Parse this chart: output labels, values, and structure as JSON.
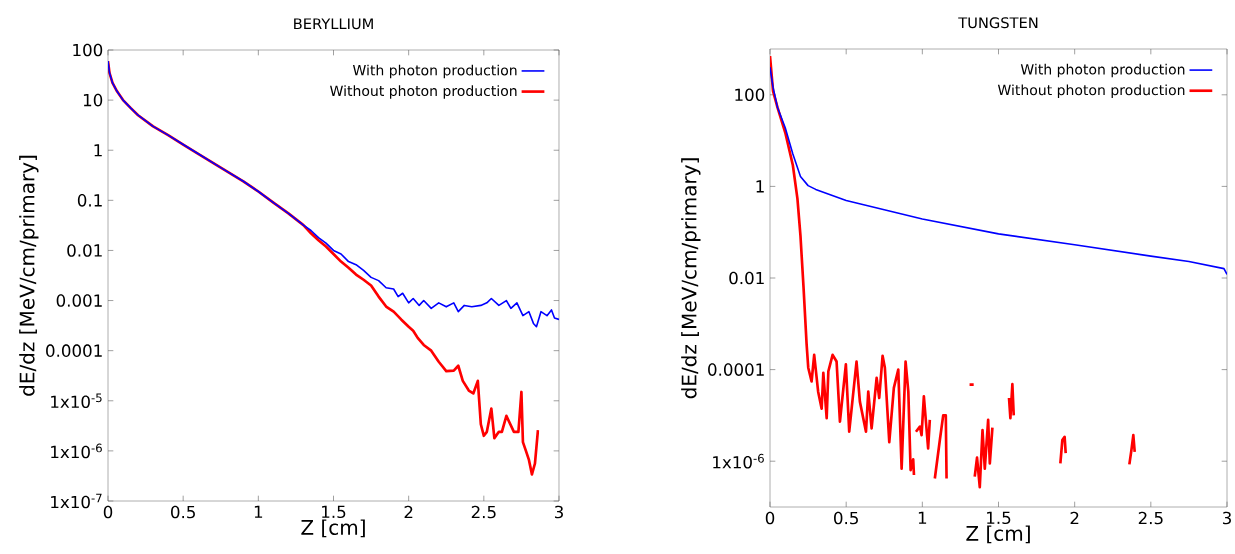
{
  "chart_data": [
    {
      "type": "line",
      "title": "BERYLLIUM",
      "xlabel": "Z [cm]",
      "ylabel": "dE/dz [MeV/cm/primary]",
      "log": "y",
      "legend": "top right",
      "xlim": [
        0,
        3
      ],
      "xticks": [
        0,
        0.5,
        1,
        1.5,
        2,
        2.5,
        3
      ],
      "ylim": [
        1e-07,
        100
      ],
      "yticks": [
        100,
        10,
        1,
        0.1,
        0.01,
        0.001,
        0.0001,
        {
          "value": 1e-05,
          "label": "1x10$^{-5}$"
        },
        {
          "value": 1e-06,
          "label": "1x10$^{-6}$"
        },
        {
          "value": 1e-07,
          "label": "1x10$^{-7}$"
        }
      ],
      "series": [
        {
          "name": "With photon production",
          "color": "#0000ff",
          "x": [
            0,
            0.01,
            0.03,
            0.06,
            0.1,
            0.15,
            0.2,
            0.3,
            0.4,
            0.5,
            0.6,
            0.75,
            0.9,
            1.0,
            1.1,
            1.2,
            1.3,
            1.35,
            1.4,
            1.45,
            1.5,
            1.55,
            1.6,
            1.65,
            1.7,
            1.75,
            1.8,
            1.85,
            1.9,
            1.93,
            1.96,
            2.0,
            2.03,
            2.07,
            2.1,
            2.15,
            2.2,
            2.25,
            2.3,
            2.33,
            2.37,
            2.42,
            2.48,
            2.52,
            2.55,
            2.6,
            2.65,
            2.68,
            2.72,
            2.76,
            2.8,
            2.83,
            2.85,
            2.88,
            2.92,
            2.95,
            2.97,
            3.0
          ],
          "values": [
            60,
            35,
            22,
            15,
            10,
            7,
            5,
            3,
            2,
            1.3,
            0.85,
            0.45,
            0.24,
            0.15,
            0.09,
            0.055,
            0.032,
            0.025,
            0.018,
            0.014,
            0.01,
            0.0085,
            0.006,
            0.0052,
            0.004,
            0.0029,
            0.0025,
            0.0018,
            0.0017,
            0.0012,
            0.0014,
            0.0009,
            0.0011,
            0.0008,
            0.001,
            0.0007,
            0.0009,
            0.00075,
            0.0009,
            0.0006,
            0.0008,
            0.00075,
            0.0008,
            0.0009,
            0.0011,
            0.0008,
            0.001,
            0.0007,
            0.0009,
            0.0005,
            0.0006,
            0.00035,
            0.0003,
            0.0006,
            0.0005,
            0.00065,
            0.00045,
            0.00042
          ]
        },
        {
          "name": "Without photon production",
          "color": "#ff0000",
          "x": [
            0,
            0.01,
            0.03,
            0.06,
            0.1,
            0.15,
            0.2,
            0.3,
            0.4,
            0.5,
            0.6,
            0.75,
            0.9,
            1.0,
            1.1,
            1.2,
            1.3,
            1.35,
            1.4,
            1.45,
            1.5,
            1.55,
            1.6,
            1.65,
            1.7,
            1.75,
            1.8,
            1.85,
            1.9,
            1.95,
            2.0,
            2.03,
            2.06,
            2.1,
            2.15,
            2.2,
            2.25,
            2.3,
            2.33,
            2.36,
            2.4,
            2.43,
            2.46,
            2.48,
            2.5,
            2.52,
            2.55,
            2.57,
            2.6,
            2.62,
            2.65,
            2.7,
            2.73,
            2.75,
            2.76,
            2.78,
            2.8,
            2.82,
            2.84,
            2.86
          ],
          "values": [
            60,
            35,
            22,
            15,
            10,
            7,
            5,
            3,
            2,
            1.3,
            0.85,
            0.45,
            0.24,
            0.15,
            0.09,
            0.055,
            0.032,
            0.022,
            0.016,
            0.012,
            0.0085,
            0.006,
            0.0045,
            0.0033,
            0.0026,
            0.002,
            0.0012,
            0.00076,
            0.0006,
            0.00042,
            0.0003,
            0.00025,
            0.00018,
            0.00013,
            0.0001,
            6e-05,
            3.9e-05,
            4e-05,
            5e-05,
            2.5e-05,
            1.6e-05,
            1.4e-05,
            2.5e-05,
            3.4e-06,
            2e-06,
            2.4e-06,
            7e-06,
            1.8e-06,
            2.4e-06,
            2.4e-06,
            5e-06,
            2.4e-06,
            2.4e-06,
            1.5e-05,
            1.5e-06,
            1e-06,
            6.6e-07,
            3.4e-07,
            5.6e-07,
            2.6e-06
          ]
        }
      ]
    },
    {
      "type": "line",
      "title": "TUNGSTEN",
      "xlabel": "Z [cm]",
      "ylabel": "dE/dz [MeV/cm/primary]",
      "log": "y",
      "legend": "top right",
      "xlim": [
        0,
        3
      ],
      "xticks": [
        0,
        0.5,
        1,
        1.5,
        2,
        2.5,
        3
      ],
      "ylim": [
        1e-07,
        1000
      ],
      "yticks": [
        100,
        1,
        0.01,
        0.0001,
        {
          "value": 1e-06,
          "label": "1x10$^{-6}$"
        }
      ],
      "series": [
        {
          "name": "With photon production",
          "color": "#0000ff",
          "x": [
            0,
            0.02,
            0.05,
            0.1,
            0.15,
            0.2,
            0.25,
            0.3,
            0.5,
            0.75,
            1.0,
            1.5,
            2.0,
            2.5,
            2.75,
            2.98,
            3.0
          ],
          "values": [
            400,
            145,
            52,
            19,
            5.1,
            1.65,
            1.04,
            0.86,
            0.49,
            0.31,
            0.194,
            0.092,
            0.053,
            0.03,
            0.023,
            0.016,
            0.012
          ]
        },
        {
          "name": "Without photon production",
          "color": "#ff0000",
          "x": [
            0,
            0.02,
            0.05,
            0.1,
            0.15,
            0.18,
            0.2,
            0.22,
            0.24,
            0.251,
            0.273,
            0.29,
            0.316,
            0.339,
            0.35,
            0.372,
            0.383,
            0.411,
            0.437,
            0.459,
            0.498,
            0.52,
            0.568,
            0.59,
            0.63,
            0.645,
            0.667,
            0.7,
            0.717,
            0.739,
            0.754,
            0.783,
            0.813,
            0.842,
            0.864,
            0.89,
            0.908,
            0.923,
            0.94,
            0.945,
            0.95,
            0.958,
            0.984,
            0.995,
            1.01,
            1.038,
            1.049,
            1.065,
            1.082,
            1.115,
            1.137,
            1.154,
            1.159,
            1.24,
            1.31,
            1.337,
            1.34,
            1.344,
            1.359,
            1.377,
            1.395,
            1.41,
            1.432,
            1.443,
            1.46,
            1.51,
            1.569,
            1.578,
            1.591,
            1.6,
            1.75,
            1.906,
            1.919,
            1.934,
            1.941,
            2.15,
            2.359,
            2.372,
            2.385,
            2.394
          ],
          "values": [
            700,
            120,
            52,
            15,
            2.9,
            0.54,
            0.083,
            0.0063,
            0.00037,
            0.00011,
            5.5e-05,
            0.00021,
            3.3e-05,
            1.4e-05,
            8.5e-05,
            8.7e-06,
            9.2e-05,
            0.00021,
            0.00015,
            7.3e-06,
            0.00013,
            4.4e-06,
            0.00015,
            2e-05,
            4.4e-06,
            3.3e-05,
            5.2e-06,
            6.6e-05,
            2.4e-05,
            0.0002,
            0.00011,
            2.6e-06,
            4e-05,
            0.0001,
            6.9e-07,
            0.00015,
            3.3e-05,
            6.4e-07,
            1.1e-06,
            5e-07,
            null,
            4.4e-06,
            5.7e-06,
            3.7e-06,
            2.6e-05,
            1.9e-06,
            8e-06,
            null,
            4.2e-07,
            2.9e-06,
            1e-05,
            1e-05,
            4.2e-07,
            null,
            4.7e-05,
            4.7e-05,
            null,
            4.6e-07,
            1.2e-06,
            2.7e-07,
            4.8e-06,
            6.9e-07,
            8e-06,
            8.9e-07,
            5.4e-06,
            null,
            2.4e-05,
            8.7e-06,
            4.8e-05,
            1e-05,
            null,
            9e-07,
            2.9e-06,
            3.4e-06,
            1.5e-06,
            null,
            8.5e-07,
            1.7e-06,
            3.7e-06,
            1.6e-06
          ]
        }
      ]
    }
  ]
}
